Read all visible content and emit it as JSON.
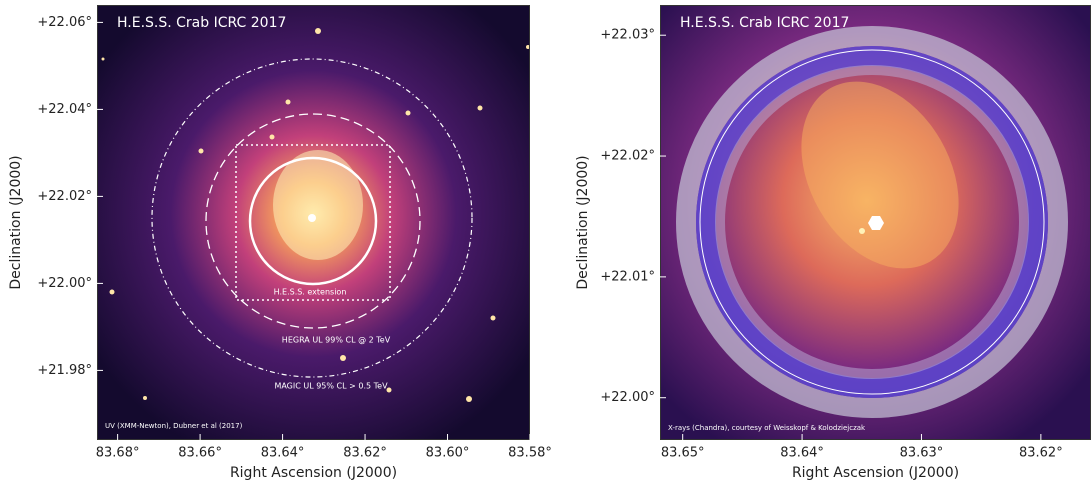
{
  "chart_data": [
    {
      "type": "image",
      "title": "H.E.S.S. Crab ICRC 2017",
      "xlabel": "Right Ascension (J2000)",
      "ylabel": "Declination (J2000)",
      "xlim": [
        83.685,
        83.58
      ],
      "ylim": [
        21.964,
        22.064
      ],
      "xticks": [
        {
          "value": 83.68,
          "label": "83.68°"
        },
        {
          "value": 83.66,
          "label": "83.66°"
        },
        {
          "value": 83.64,
          "label": "83.64°"
        },
        {
          "value": 83.62,
          "label": "83.62°"
        },
        {
          "value": 83.6,
          "label": "83.60°"
        },
        {
          "value": 83.58,
          "label": "83.58°"
        }
      ],
      "yticks": [
        {
          "value": 21.98,
          "label": "+21.98°"
        },
        {
          "value": 22.0,
          "label": "+22.00°"
        },
        {
          "value": 22.02,
          "label": "+22.02°"
        },
        {
          "value": 22.04,
          "label": "+22.04°"
        },
        {
          "value": 22.06,
          "label": "+22.06°"
        }
      ],
      "annotations": [
        "H.E.S.S. extension",
        "HEGRA UL 99% CL @ 2 TeV",
        "MAGIC UL 95% CL > 0.5 TeV"
      ],
      "credit": "UV (XMM-Newton), Dubner et al (2017)"
    },
    {
      "type": "image",
      "title": "H.E.S.S. Crab ICRC 2017",
      "xlabel": "Right Ascension (J2000)",
      "ylabel": "Declination (J2000)",
      "xlim": [
        83.6519,
        83.6158
      ],
      "ylim": [
        21.9965,
        22.0325
      ],
      "xticks": [
        {
          "value": 83.65,
          "label": "83.65°"
        },
        {
          "value": 83.64,
          "label": "83.64°"
        },
        {
          "value": 83.63,
          "label": "83.63°"
        },
        {
          "value": 83.62,
          "label": "83.62°"
        }
      ],
      "yticks": [
        {
          "value": 22.0,
          "label": "+22.00°"
        },
        {
          "value": 22.01,
          "label": "+22.01°"
        },
        {
          "value": 22.02,
          "label": "+22.02°"
        },
        {
          "value": 22.03,
          "label": "+22.03°"
        }
      ],
      "credit": "X-rays (Chandra), courtesy of Weisskopf & Kolodziejczak"
    }
  ]
}
